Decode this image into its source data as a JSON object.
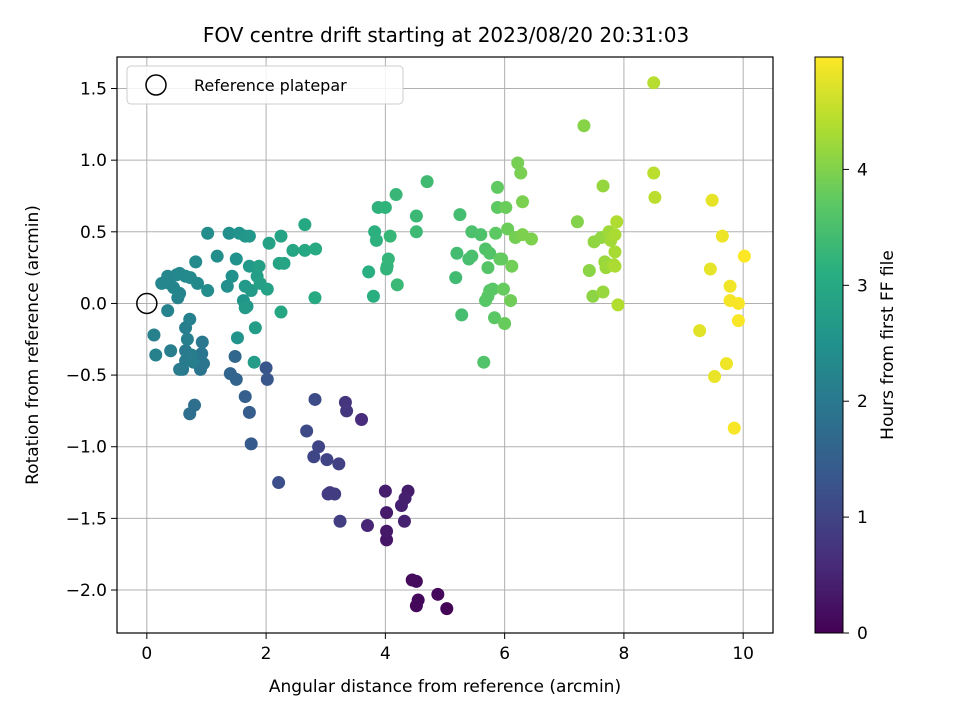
{
  "chart_data": {
    "type": "scatter",
    "title": "FOV centre drift starting at 2023/08/20 20:31:03",
    "xlabel": "Angular distance from reference (arcmin)",
    "ylabel": "Rotation from reference (arcmin)",
    "xlim": [
      -0.5,
      10.5
    ],
    "ylim": [
      -2.3,
      1.72
    ],
    "grid": true,
    "xticks": [
      0,
      2,
      4,
      6,
      8,
      10
    ],
    "xtick_labels": [
      "0",
      "2",
      "4",
      "6",
      "8",
      "10"
    ],
    "yticks": [
      -2.0,
      -1.5,
      -1.0,
      -0.5,
      0.0,
      0.5,
      1.0,
      1.5
    ],
    "ytick_labels": [
      "−2.0",
      "−1.5",
      "−1.0",
      "−0.5",
      "0.0",
      "0.5",
      "1.0",
      "1.5"
    ],
    "legend": {
      "position": "upper-left",
      "entries": [
        "Reference platepar"
      ]
    },
    "reference_point": {
      "x": 0,
      "y": 0
    },
    "colorbar": {
      "label": "Hours from first FF file",
      "colormap": "viridis",
      "range": [
        0,
        4.97
      ],
      "ticks": [
        0,
        1,
        2,
        3,
        4
      ],
      "tick_labels": [
        "0",
        "1",
        "2",
        "3",
        "4"
      ]
    },
    "points": [
      {
        "x": 5.03,
        "y": -2.13,
        "h": 0.05
      },
      {
        "x": 4.52,
        "y": -2.11,
        "h": 0.08
      },
      {
        "x": 4.55,
        "y": -2.07,
        "h": 0.1
      },
      {
        "x": 4.88,
        "y": -2.03,
        "h": 0.12
      },
      {
        "x": 4.45,
        "y": -1.93,
        "h": 0.14
      },
      {
        "x": 4.52,
        "y": -1.94,
        "h": 0.15
      },
      {
        "x": 4.02,
        "y": -1.65,
        "h": 0.3
      },
      {
        "x": 4.02,
        "y": -1.59,
        "h": 0.33
      },
      {
        "x": 4.02,
        "y": -1.46,
        "h": 0.36
      },
      {
        "x": 4.0,
        "y": -1.31,
        "h": 0.4
      },
      {
        "x": 4.38,
        "y": -1.31,
        "h": 0.38
      },
      {
        "x": 4.33,
        "y": -1.36,
        "h": 0.42
      },
      {
        "x": 4.27,
        "y": -1.41,
        "h": 0.44
      },
      {
        "x": 4.32,
        "y": -1.52,
        "h": 0.46
      },
      {
        "x": 3.7,
        "y": -1.55,
        "h": 0.52
      },
      {
        "x": 3.6,
        "y": -0.81,
        "h": 0.62
      },
      {
        "x": 3.33,
        "y": -0.69,
        "h": 0.75
      },
      {
        "x": 3.35,
        "y": -0.75,
        "h": 0.78
      },
      {
        "x": 3.07,
        "y": -1.32,
        "h": 0.85
      },
      {
        "x": 3.15,
        "y": -1.33,
        "h": 0.87
      },
      {
        "x": 3.04,
        "y": -1.33,
        "h": 0.88
      },
      {
        "x": 3.24,
        "y": -1.52,
        "h": 0.9
      },
      {
        "x": 3.22,
        "y": -1.12,
        "h": 0.95
      },
      {
        "x": 3.02,
        "y": -1.09,
        "h": 1.0
      },
      {
        "x": 2.88,
        "y": -1.0,
        "h": 1.02
      },
      {
        "x": 2.8,
        "y": -1.07,
        "h": 1.04
      },
      {
        "x": 2.68,
        "y": -0.89,
        "h": 1.1
      },
      {
        "x": 2.82,
        "y": -0.67,
        "h": 1.12
      },
      {
        "x": 2.21,
        "y": -1.25,
        "h": 1.2
      },
      {
        "x": 2.0,
        "y": -0.45,
        "h": 1.32
      },
      {
        "x": 2.02,
        "y": -0.53,
        "h": 1.34
      },
      {
        "x": 1.75,
        "y": -0.98,
        "h": 1.4
      },
      {
        "x": 1.72,
        "y": -0.76,
        "h": 1.45
      },
      {
        "x": 1.65,
        "y": -0.65,
        "h": 1.5
      },
      {
        "x": 1.5,
        "y": -0.53,
        "h": 1.6
      },
      {
        "x": 1.4,
        "y": -0.49,
        "h": 1.62
      },
      {
        "x": 1.48,
        "y": -0.37,
        "h": 1.65
      },
      {
        "x": 0.72,
        "y": -0.77,
        "h": 1.78
      },
      {
        "x": 0.8,
        "y": -0.71,
        "h": 1.8
      },
      {
        "x": 0.9,
        "y": -0.46,
        "h": 1.9
      },
      {
        "x": 0.95,
        "y": -0.42,
        "h": 1.92
      },
      {
        "x": 0.92,
        "y": -0.35,
        "h": 1.95
      },
      {
        "x": 0.93,
        "y": -0.27,
        "h": 1.97
      },
      {
        "x": 0.65,
        "y": -0.33,
        "h": 2.0
      },
      {
        "x": 0.65,
        "y": -0.4,
        "h": 2.02
      },
      {
        "x": 0.6,
        "y": -0.46,
        "h": 2.03
      },
      {
        "x": 0.55,
        "y": -0.46,
        "h": 2.05
      },
      {
        "x": 0.75,
        "y": -0.36,
        "h": 2.07
      },
      {
        "x": 0.78,
        "y": -0.41,
        "h": 2.08
      },
      {
        "x": 0.4,
        "y": -0.33,
        "h": 2.1
      },
      {
        "x": 0.68,
        "y": -0.25,
        "h": 2.12
      },
      {
        "x": 0.65,
        "y": -0.17,
        "h": 2.13
      },
      {
        "x": 0.72,
        "y": -0.11,
        "h": 2.15
      },
      {
        "x": 0.15,
        "y": -0.36,
        "h": 2.16
      },
      {
        "x": 0.12,
        "y": -0.22,
        "h": 2.17
      },
      {
        "x": 0.35,
        "y": -0.05,
        "h": 2.18
      },
      {
        "x": 0.52,
        "y": 0.04,
        "h": 2.2
      },
      {
        "x": 0.55,
        "y": 0.07,
        "h": 2.22
      },
      {
        "x": 0.45,
        "y": 0.11,
        "h": 2.24
      },
      {
        "x": 0.38,
        "y": 0.14,
        "h": 2.25
      },
      {
        "x": 0.25,
        "y": 0.14,
        "h": 2.26
      },
      {
        "x": 0.35,
        "y": 0.19,
        "h": 2.27
      },
      {
        "x": 0.5,
        "y": 0.2,
        "h": 2.28
      },
      {
        "x": 0.55,
        "y": 0.21,
        "h": 2.3
      },
      {
        "x": 0.65,
        "y": 0.19,
        "h": 2.32
      },
      {
        "x": 0.73,
        "y": 0.18,
        "h": 2.34
      },
      {
        "x": 0.85,
        "y": 0.14,
        "h": 2.35
      },
      {
        "x": 0.82,
        "y": 0.29,
        "h": 2.36
      },
      {
        "x": 1.02,
        "y": 0.09,
        "h": 2.38
      },
      {
        "x": 1.02,
        "y": 0.49,
        "h": 2.4
      },
      {
        "x": 1.18,
        "y": 0.33,
        "h": 2.42
      },
      {
        "x": 1.35,
        "y": 0.12,
        "h": 2.44
      },
      {
        "x": 1.38,
        "y": 0.49,
        "h": 2.45
      },
      {
        "x": 1.43,
        "y": 0.19,
        "h": 2.48
      },
      {
        "x": 1.5,
        "y": 0.31,
        "h": 2.5
      },
      {
        "x": 1.55,
        "y": 0.49,
        "h": 2.52
      },
      {
        "x": 1.52,
        "y": -0.24,
        "h": 2.55
      },
      {
        "x": 1.62,
        "y": 0.02,
        "h": 2.58
      },
      {
        "x": 1.65,
        "y": 0.47,
        "h": 2.6
      },
      {
        "x": 1.72,
        "y": 0.47,
        "h": 2.62
      },
      {
        "x": 1.68,
        "y": -0.02,
        "h": 2.64
      },
      {
        "x": 1.65,
        "y": 0.12,
        "h": 2.65
      },
      {
        "x": 1.72,
        "y": 0.26,
        "h": 2.66
      },
      {
        "x": 1.65,
        "y": -0.03,
        "h": 2.68
      },
      {
        "x": 1.75,
        "y": 0.09,
        "h": 2.7
      },
      {
        "x": 1.8,
        "y": -0.41,
        "h": 2.72
      },
      {
        "x": 1.82,
        "y": -0.17,
        "h": 2.74
      },
      {
        "x": 1.85,
        "y": 0.19,
        "h": 2.76
      },
      {
        "x": 1.88,
        "y": 0.26,
        "h": 2.78
      },
      {
        "x": 1.9,
        "y": 0.14,
        "h": 2.8
      },
      {
        "x": 2.02,
        "y": 0.1,
        "h": 2.82
      },
      {
        "x": 2.05,
        "y": 0.42,
        "h": 2.84
      },
      {
        "x": 2.22,
        "y": 0.28,
        "h": 2.86
      },
      {
        "x": 2.25,
        "y": 0.47,
        "h": 2.88
      },
      {
        "x": 2.3,
        "y": 0.28,
        "h": 2.9
      },
      {
        "x": 2.45,
        "y": 0.37,
        "h": 2.92
      },
      {
        "x": 2.25,
        "y": -0.06,
        "h": 2.93
      },
      {
        "x": 2.65,
        "y": 0.37,
        "h": 2.95
      },
      {
        "x": 2.65,
        "y": 0.55,
        "h": 2.97
      },
      {
        "x": 2.83,
        "y": 0.38,
        "h": 2.99
      },
      {
        "x": 2.82,
        "y": 0.04,
        "h": 3.02
      },
      {
        "x": 3.72,
        "y": 0.22,
        "h": 3.1
      },
      {
        "x": 3.8,
        "y": 0.05,
        "h": 3.12
      },
      {
        "x": 3.82,
        "y": 0.5,
        "h": 3.14
      },
      {
        "x": 3.85,
        "y": 0.44,
        "h": 3.16
      },
      {
        "x": 3.88,
        "y": 0.67,
        "h": 3.18
      },
      {
        "x": 4.0,
        "y": 0.67,
        "h": 3.2
      },
      {
        "x": 4.03,
        "y": 0.26,
        "h": 3.22
      },
      {
        "x": 4.02,
        "y": 0.24,
        "h": 3.24
      },
      {
        "x": 4.05,
        "y": 0.31,
        "h": 3.26
      },
      {
        "x": 4.08,
        "y": 0.47,
        "h": 3.28
      },
      {
        "x": 4.18,
        "y": 0.76,
        "h": 3.3
      },
      {
        "x": 4.2,
        "y": 0.13,
        "h": 3.32
      },
      {
        "x": 4.52,
        "y": 0.61,
        "h": 3.34
      },
      {
        "x": 4.52,
        "y": 0.5,
        "h": 3.36
      },
      {
        "x": 4.7,
        "y": 0.85,
        "h": 3.38
      },
      {
        "x": 5.18,
        "y": 0.18,
        "h": 3.4
      },
      {
        "x": 5.2,
        "y": 0.35,
        "h": 3.42
      },
      {
        "x": 5.25,
        "y": 0.62,
        "h": 3.44
      },
      {
        "x": 5.28,
        "y": -0.08,
        "h": 3.46
      },
      {
        "x": 5.4,
        "y": 0.31,
        "h": 3.48
      },
      {
        "x": 5.45,
        "y": 0.33,
        "h": 3.5
      },
      {
        "x": 5.45,
        "y": 0.5,
        "h": 3.52
      },
      {
        "x": 5.6,
        "y": 0.48,
        "h": 3.54
      },
      {
        "x": 5.68,
        "y": 0.38,
        "h": 3.56
      },
      {
        "x": 5.65,
        "y": -0.41,
        "h": 3.58
      },
      {
        "x": 5.75,
        "y": 0.35,
        "h": 3.6
      },
      {
        "x": 5.72,
        "y": 0.25,
        "h": 3.62
      },
      {
        "x": 5.75,
        "y": 0.09,
        "h": 3.64
      },
      {
        "x": 5.68,
        "y": 0.02,
        "h": 3.65
      },
      {
        "x": 5.72,
        "y": 0.05,
        "h": 3.66
      },
      {
        "x": 5.8,
        "y": 0.1,
        "h": 3.67
      },
      {
        "x": 5.83,
        "y": -0.1,
        "h": 3.68
      },
      {
        "x": 5.85,
        "y": 0.49,
        "h": 3.7
      },
      {
        "x": 5.88,
        "y": 0.67,
        "h": 3.72
      },
      {
        "x": 5.88,
        "y": 0.81,
        "h": 3.74
      },
      {
        "x": 5.92,
        "y": 0.31,
        "h": 3.76
      },
      {
        "x": 5.95,
        "y": 0.31,
        "h": 3.77
      },
      {
        "x": 5.98,
        "y": 0.1,
        "h": 3.78
      },
      {
        "x": 6.0,
        "y": -0.14,
        "h": 3.8
      },
      {
        "x": 6.02,
        "y": 0.67,
        "h": 3.82
      },
      {
        "x": 6.05,
        "y": 0.52,
        "h": 3.84
      },
      {
        "x": 6.1,
        "y": 0.02,
        "h": 3.86
      },
      {
        "x": 6.12,
        "y": 0.26,
        "h": 3.88
      },
      {
        "x": 6.18,
        "y": 0.46,
        "h": 3.9
      },
      {
        "x": 6.22,
        "y": 0.98,
        "h": 3.92
      },
      {
        "x": 6.27,
        "y": 0.91,
        "h": 3.94
      },
      {
        "x": 6.3,
        "y": 0.71,
        "h": 3.96
      },
      {
        "x": 6.3,
        "y": 0.48,
        "h": 3.97
      },
      {
        "x": 6.45,
        "y": 0.45,
        "h": 3.98
      },
      {
        "x": 7.22,
        "y": 0.57,
        "h": 4.02
      },
      {
        "x": 7.33,
        "y": 1.24,
        "h": 4.05
      },
      {
        "x": 7.42,
        "y": 0.23,
        "h": 4.08
      },
      {
        "x": 7.48,
        "y": 0.05,
        "h": 4.1
      },
      {
        "x": 7.5,
        "y": 0.43,
        "h": 4.12
      },
      {
        "x": 7.62,
        "y": 0.46,
        "h": 4.14
      },
      {
        "x": 7.65,
        "y": 0.82,
        "h": 4.16
      },
      {
        "x": 7.65,
        "y": 0.08,
        "h": 4.18
      },
      {
        "x": 7.68,
        "y": 0.29,
        "h": 4.2
      },
      {
        "x": 7.7,
        "y": 0.25,
        "h": 4.22
      },
      {
        "x": 7.75,
        "y": 0.5,
        "h": 4.24
      },
      {
        "x": 7.78,
        "y": 0.44,
        "h": 4.26
      },
      {
        "x": 7.83,
        "y": 0.27,
        "h": 4.28
      },
      {
        "x": 7.85,
        "y": 0.36,
        "h": 4.3
      },
      {
        "x": 7.85,
        "y": 0.48,
        "h": 4.32
      },
      {
        "x": 7.85,
        "y": 0.26,
        "h": 4.34
      },
      {
        "x": 7.88,
        "y": 0.57,
        "h": 4.36
      },
      {
        "x": 7.9,
        "y": -0.01,
        "h": 4.38
      },
      {
        "x": 8.5,
        "y": 1.54,
        "h": 4.42
      },
      {
        "x": 8.5,
        "y": 0.91,
        "h": 4.44
      },
      {
        "x": 8.52,
        "y": 0.74,
        "h": 4.46
      },
      {
        "x": 9.27,
        "y": -0.19,
        "h": 4.75
      },
      {
        "x": 9.45,
        "y": 0.24,
        "h": 4.78
      },
      {
        "x": 9.48,
        "y": 0.72,
        "h": 4.8
      },
      {
        "x": 9.52,
        "y": -0.51,
        "h": 4.82
      },
      {
        "x": 9.65,
        "y": 0.47,
        "h": 4.84
      },
      {
        "x": 9.72,
        "y": -0.42,
        "h": 4.86
      },
      {
        "x": 9.78,
        "y": 0.12,
        "h": 4.88
      },
      {
        "x": 9.78,
        "y": 0.02,
        "h": 4.9
      },
      {
        "x": 9.85,
        "y": -0.87,
        "h": 4.92
      },
      {
        "x": 9.92,
        "y": 0.0,
        "h": 4.93
      },
      {
        "x": 9.92,
        "y": -0.12,
        "h": 4.94
      },
      {
        "x": 10.02,
        "y": 0.33,
        "h": 4.96
      }
    ]
  }
}
